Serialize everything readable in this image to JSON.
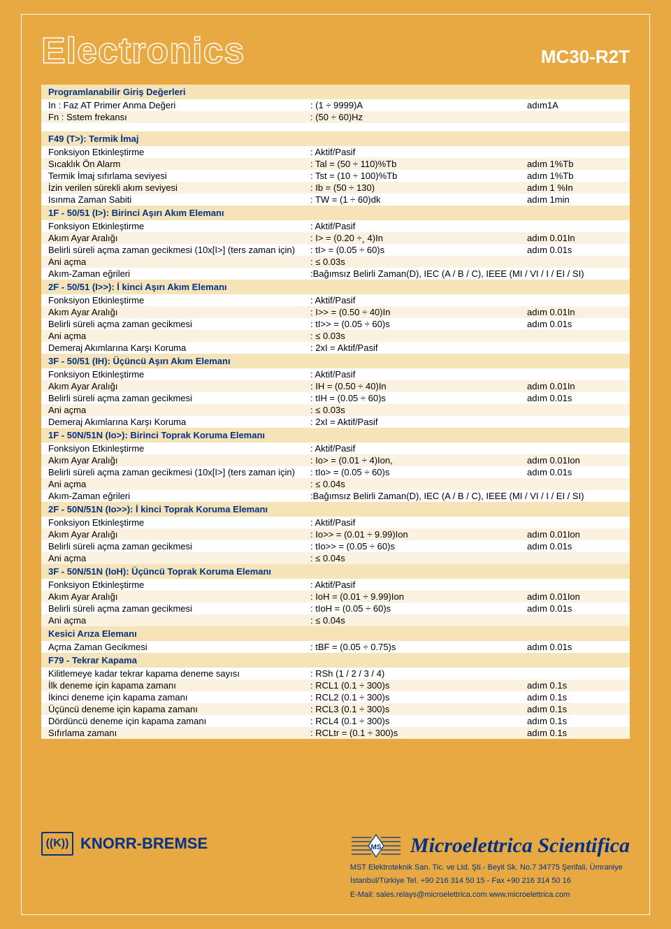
{
  "colors": {
    "bg_orange": "#e8a942",
    "header_beige": "#f7e3b8",
    "alt_beige": "#fbf1e0",
    "blue": "#003388",
    "white": "#ffffff"
  },
  "title": "Electronics",
  "model": "MC30-R2T",
  "sections": [
    {
      "head": "Programlanabilir Giriş Değerleri",
      "rows": [
        [
          "In : Faz AT Primer Anma Değeri",
          ": (1 ÷ 9999)A",
          "adım1A"
        ],
        [
          "Fn : Sstem frekansı",
          ": (50 ÷ 60)Hz",
          ""
        ]
      ]
    },
    {
      "head": "F49 (T>): Termik İmaj",
      "rows": [
        [
          "Fonksiyon Etkinleştirme",
          ": Aktif/Pasif",
          ""
        ],
        [
          "Sıcaklık Ön Alarm",
          ": Tal = (50 ÷ 110)%Tb",
          "adım 1%Tb"
        ],
        [
          "Termik İmaj sıfırlama seviyesi",
          ": Tst = (10 ÷ 100)%Tb",
          "adım 1%Tb"
        ],
        [
          "İzin verilen sürekli akım seviyesi",
          ": Ib = (50 ÷ 130)",
          "adım 1 %In"
        ],
        [
          "Isınma Zaman Sabiti",
          ": TW = (1 ÷ 60)dk",
          "adım 1min"
        ]
      ]
    },
    {
      "head": "1F - 50/51 (I>): Birinci Aşırı Akım Elemanı",
      "rows": [
        [
          "Fonksiyon Etkinleştirme",
          ": Aktif/Pasif",
          ""
        ],
        [
          "Akım Ayar Aralığı",
          ": I> = (0.20 ÷¸ 4)In",
          "adım 0.01In"
        ],
        [
          "Belirli süreli açma zaman gecikmesi (10x[I>] (ters zaman için)",
          ": tI> = (0.05 ÷ 60)s",
          "adım 0.01s"
        ],
        [
          "Ani açma",
          ": ≤ 0.03s",
          ""
        ],
        [
          "Akım-Zaman eğrileri",
          ":Bağımsız Belirli Zaman(D), IEC (A / B / C), IEEE (MI / VI / I / EI / SI)",
          ""
        ]
      ]
    },
    {
      "head": "2F - 50/51 (I>>): İ kinci Aşırı Akım Elemanı",
      "rows": [
        [
          "Fonksiyon Etkinleştirme",
          ": Aktif/Pasif",
          ""
        ],
        [
          "Akım Ayar Aralığı",
          ": I>> = (0.50 ÷ 40)In",
          "adım 0.01In"
        ],
        [
          "Belirli süreli açma zaman gecikmesi",
          ": tI>> = (0.05 ÷ 60)s",
          "adım 0.01s"
        ],
        [
          "Ani açma",
          ": ≤ 0.03s",
          ""
        ],
        [
          "Demeraj Akımlarına Karşı Koruma",
          ": 2xI = Aktif/Pasif",
          ""
        ]
      ]
    },
    {
      "head": "3F - 50/51 (IH): Üçüncü Aşırı Akım Elemanı",
      "rows": [
        [
          "Fonksiyon Etkinleştirme",
          ": Aktif/Pasif",
          ""
        ],
        [
          "Akım Ayar Aralığı",
          ": IH = (0.50 ÷ 40)In",
          "adım 0.01In"
        ],
        [
          "Belirli süreli açma zaman gecikmesi",
          ": tIH = (0.05 ÷ 60)s",
          "adım 0.01s"
        ],
        [
          "Ani açma",
          ": ≤ 0.03s",
          ""
        ],
        [
          "Demeraj Akımlarına Karşı Koruma",
          ": 2xI = Aktif/Pasif",
          ""
        ]
      ]
    },
    {
      "head": "1F - 50N/51N (Io>): Birinci Toprak Koruma Elemanı",
      "rows": [
        [
          "Fonksiyon Etkinleştirme",
          ": Aktif/Pasif",
          ""
        ],
        [
          "Akım Ayar Aralığı",
          ": Io> = (0.01 ÷ 4)Ion,",
          "adım 0.01Ion"
        ],
        [
          "Belirli süreli açma zaman gecikmesi (10x[I>] (ters zaman için)",
          ": tIo> = (0.05 ÷ 60)s",
          "adım 0.01s"
        ],
        [
          "Ani açma",
          ": ≤ 0.04s",
          ""
        ],
        [
          "Akım-Zaman eğrileri",
          ":Bağımsız Belirli Zaman(D), IEC (A / B / C), IEEE (MI / VI / I / EI / SI)",
          ""
        ]
      ]
    },
    {
      "head": "2F - 50N/51N (Io>>): İ kinci Toprak Koruma Elemanı",
      "rows": [
        [
          "Fonksiyon Etkinleştirme",
          ": Aktif/Pasif",
          ""
        ],
        [
          "Akım Ayar Aralığı",
          ": Io>> = (0.01 ÷ 9.99)Ion",
          "adım 0.01Ion"
        ],
        [
          "Belirli süreli açma zaman gecikmesi",
          ": tIo>> = (0.05 ÷ 60)s",
          "adım 0.01s"
        ],
        [
          "Ani açma",
          ": ≤ 0.04s",
          ""
        ]
      ]
    },
    {
      "head": "3F - 50N/51N (IoH): Üçüncü Toprak Koruma Elemanı",
      "rows": [
        [
          "Fonksiyon Etkinleştirme",
          ": Aktif/Pasif",
          ""
        ],
        [
          "Akım Ayar Aralığı",
          ": IoH = (0.01 ÷ 9.99)Ion",
          "adım 0.01Ion"
        ],
        [
          "Belirli süreli açma zaman gecikmesi",
          ": tIoH = (0.05 ÷ 60)s",
          "adım 0.01s"
        ],
        [
          "Ani açma",
          ": ≤ 0.04s",
          ""
        ]
      ]
    },
    {
      "head": "Kesici Arıza Elemanı",
      "rows": [
        [
          "Açma Zaman Gecikmesi",
          ": tBF = (0.05 ÷ 0.75)s",
          "adım 0.01s"
        ]
      ]
    },
    {
      "head": "F79 - Tekrar Kapama",
      "rows": [
        [
          "Kilitlemeye kadar tekrar kapama deneme sayısı",
          ": RSh (1 / 2 / 3 / 4)",
          ""
        ],
        [
          "İlk deneme için kapama zamanı",
          ": RCL1 (0.1 ÷ 300)s",
          "adım 0.1s"
        ],
        [
          "İkinci deneme için kapama zamanı",
          ": RCL2 (0.1 ÷ 300)s",
          "adım 0.1s"
        ],
        [
          "Üçüncü deneme için kapama zamanı",
          ": RCL3 (0.1 ÷ 300)s",
          "adım 0.1s"
        ],
        [
          "Dördüncü deneme için kapama zamanı",
          ": RCL4 (0.1 ÷ 300)s",
          "adım 0.1s"
        ],
        [
          "Sıfırlama zamanı",
          ": RCLtr = (0.1 ÷ 300)s",
          "adım 0.1s"
        ]
      ]
    }
  ],
  "footer": {
    "kb_icon": "((K))",
    "kb_text": "KNORR-BREMSE",
    "ms_text": "Microelettrica Scientifica",
    "addr1": "MST Elektroteknik San. Tic. ve Ltd. Şti.- Beyit Sk. No.7 34775 Şerifali, Ümraniye",
    "addr2": "İstanbul/Türkiye Tel. +90 216 314 50 15 - Fax +90 216 314 50 16",
    "addr3": "E-Mail: sales.relays@microelettrica.com www.microelettrica.com"
  }
}
